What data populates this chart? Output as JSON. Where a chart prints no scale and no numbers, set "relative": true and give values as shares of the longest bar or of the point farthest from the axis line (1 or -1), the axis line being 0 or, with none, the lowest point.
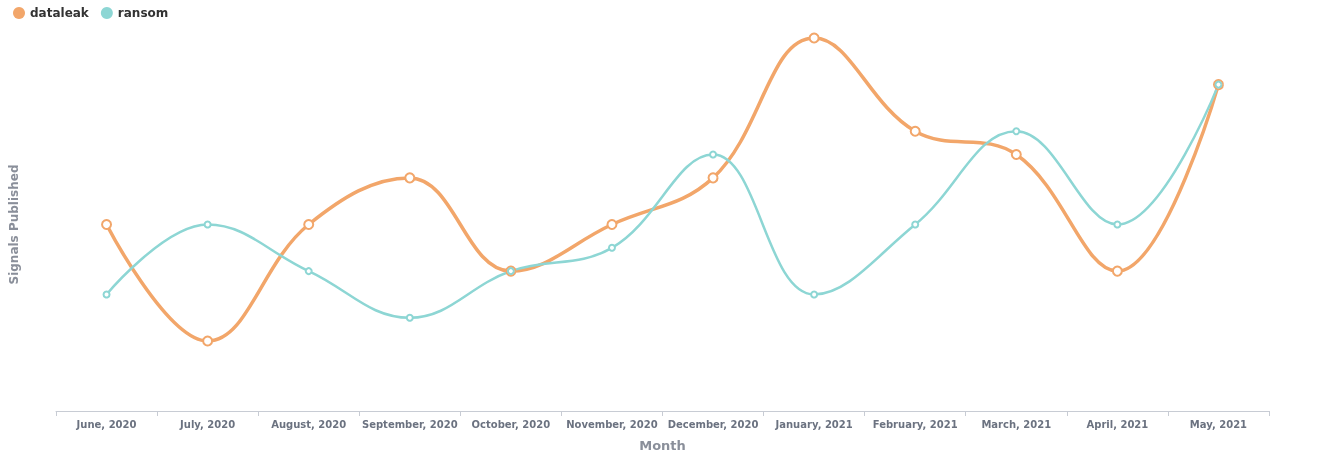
{
  "chart_data": {
    "type": "line",
    "xlabel": "Month",
    "ylabel": "Signals Published",
    "relative": true,
    "categories": [
      "June, 2020",
      "July, 2020",
      "August, 2020",
      "September, 2020",
      "October, 2020",
      "November, 2020",
      "December, 2020",
      "January, 2021",
      "February, 2021",
      "March, 2021",
      "April, 2021",
      "May, 2021"
    ],
    "series": [
      {
        "name": "dataleak",
        "color": "#f2a66a",
        "values": [
          0.5,
          0.1875,
          0.5,
          0.625,
          0.375,
          0.5,
          0.625,
          1,
          0.75,
          0.6875,
          0.375,
          0.875
        ]
      },
      {
        "name": "ransom",
        "color": "#8dd6d4",
        "values": [
          0.3125,
          0.5,
          0.375,
          0.25,
          0.375,
          0.4375,
          0.6875,
          0.3125,
          0.5,
          0.75,
          0.5,
          0.875
        ]
      }
    ],
    "legend": "top left",
    "grid": false,
    "marker": "circle",
    "line_style": "solid"
  }
}
